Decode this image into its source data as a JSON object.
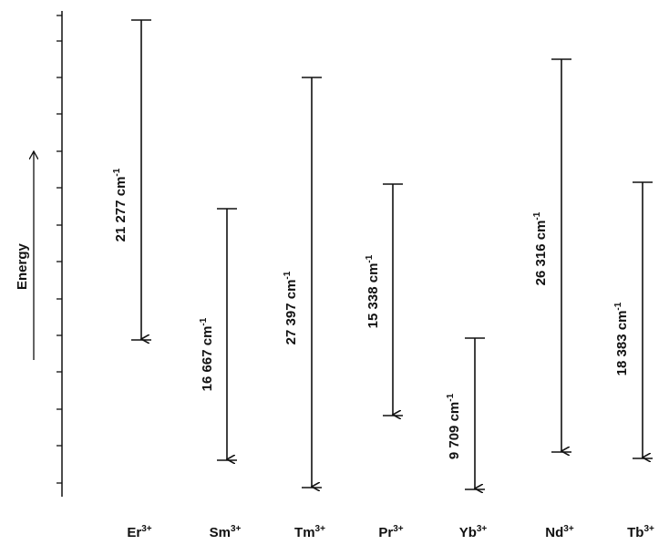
{
  "axis": {
    "label": "Energy"
  },
  "transitions": [
    {
      "ion": "Er",
      "charge": "3+",
      "value": "21 277",
      "unit": "cm",
      "unit_exp": "-1"
    },
    {
      "ion": "Sm",
      "charge": "3+",
      "value": "16 667",
      "unit": "cm",
      "unit_exp": "-1"
    },
    {
      "ion": "Tm",
      "charge": "3+",
      "value": "27 397",
      "unit": "cm",
      "unit_exp": "-1"
    },
    {
      "ion": "Pr",
      "charge": "3+",
      "value": "15 338",
      "unit": "cm",
      "unit_exp": "-1"
    },
    {
      "ion": "Yb",
      "charge": "3+",
      "value": "9 709",
      "unit": "cm",
      "unit_exp": "-1"
    },
    {
      "ion": "Nd",
      "charge": "3+",
      "value": "26 316",
      "unit": "cm",
      "unit_exp": "-1"
    },
    {
      "ion": "Tb",
      "charge": "3+",
      "value": "18 383",
      "unit": "cm",
      "unit_exp": "-1"
    }
  ]
}
